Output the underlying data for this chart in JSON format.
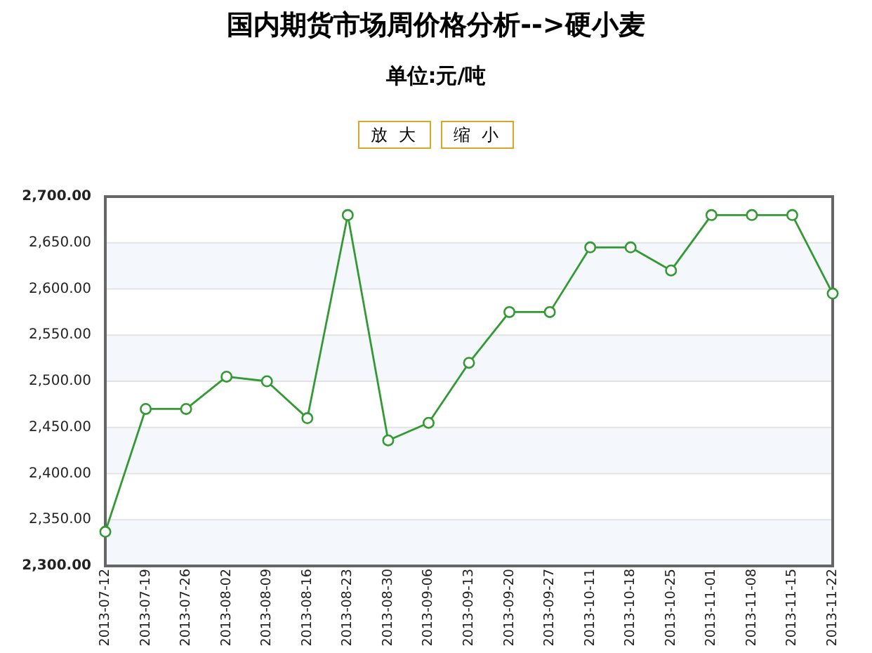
{
  "chart_data": {
    "type": "line",
    "title": "国内期货市场周价格分析-->硬小麦",
    "subtitle": "单位:元/吨",
    "annotations": [
      "放 大",
      "缩 小"
    ],
    "categories": [
      "2013-07-12",
      "2013-07-19",
      "2013-07-26",
      "2013-08-02",
      "2013-08-09",
      "2013-08-16",
      "2013-08-23",
      "2013-08-30",
      "2013-09-06",
      "2013-09-13",
      "2013-09-20",
      "2013-09-27",
      "2013-10-11",
      "2013-10-18",
      "2013-10-25",
      "2013-11-01",
      "2013-11-08",
      "2013-11-15",
      "2013-11-22"
    ],
    "values": [
      2337,
      2470,
      2470,
      2505,
      2500,
      2460,
      2680,
      2436,
      2455,
      2520,
      2575,
      2575,
      2645,
      2645,
      2620,
      2680,
      2680,
      2680,
      2595
    ],
    "color": "#339933",
    "ylim": [
      2300,
      2700
    ],
    "yticks": [
      {
        "value": 2300,
        "label": "2,300.00"
      },
      {
        "value": 2350,
        "label": "2,350.00"
      },
      {
        "value": 2400,
        "label": "2,400.00"
      },
      {
        "value": 2450,
        "label": "2,450.00"
      },
      {
        "value": 2500,
        "label": "2,500.00"
      },
      {
        "value": 2550,
        "label": "2,550.00"
      },
      {
        "value": 2600,
        "label": "2,600.00"
      },
      {
        "value": 2650,
        "label": "2,650.00"
      },
      {
        "value": 2700,
        "label": "2,700.00"
      }
    ],
    "grid": "y",
    "marker": "circle",
    "line_style": "solid"
  }
}
